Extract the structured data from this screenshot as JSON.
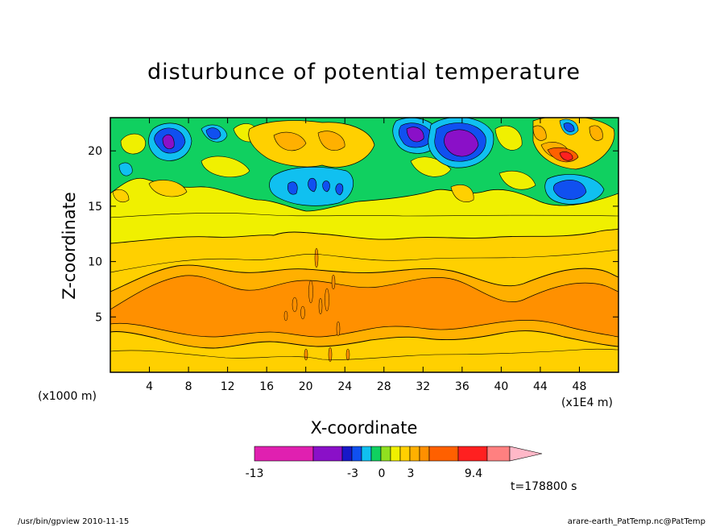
{
  "chart_data": {
    "type": "heatmap",
    "title": "disturbunce of potential temperature",
    "xlabel": "X-coordinate",
    "ylabel": "Z-coordinate",
    "x_unit": "(x1E4 m)",
    "y_unit": "(x1000 m)",
    "xlim": [
      0,
      52
    ],
    "ylim": [
      0,
      23
    ],
    "x_ticks": [
      4,
      8,
      12,
      16,
      20,
      24,
      28,
      32,
      36,
      40,
      44,
      48
    ],
    "y_ticks": [
      5,
      10,
      15,
      20
    ],
    "colorbar": {
      "labels": [
        "-13",
        "-3",
        "0",
        "3",
        "9.4"
      ],
      "colors": [
        "#e020b0",
        "#8a10c8",
        "#1818c8",
        "#1050f0",
        "#10c0f0",
        "#10d060",
        "#90e020",
        "#f0f000",
        "#ffd000",
        "#ffb000",
        "#ff9000",
        "#ff6000",
        "#ff2020",
        "#ff8080",
        "#ffb8c8"
      ]
    },
    "time_label": "t=178800 s",
    "features": [
      {
        "name": "surface-warm-band",
        "z_range": [
          0,
          11
        ],
        "level": "0 to 3"
      },
      {
        "name": "upper-cold-cells",
        "z_range": [
          15,
          23
        ],
        "level": "-13 to 0"
      }
    ]
  },
  "footer": {
    "left": "/usr/bin/gpview  2010-11-15",
    "right": "arare-earth_PatTemp.nc@PatTemp"
  },
  "colors": {
    "pink": "#e020b0",
    "purple": "#8a10c8",
    "navy": "#1818c8",
    "blue": "#1050f0",
    "cyan": "#10c0f0",
    "green": "#10d060",
    "lime": "#90e020",
    "yellow": "#f0f000",
    "gold": "#ffd000",
    "amber": "#ffb000",
    "orange": "#ff9000",
    "darkorange": "#ff6000",
    "red": "#ff2020",
    "salmon": "#ff8080",
    "lightpink": "#ffb8c8"
  }
}
